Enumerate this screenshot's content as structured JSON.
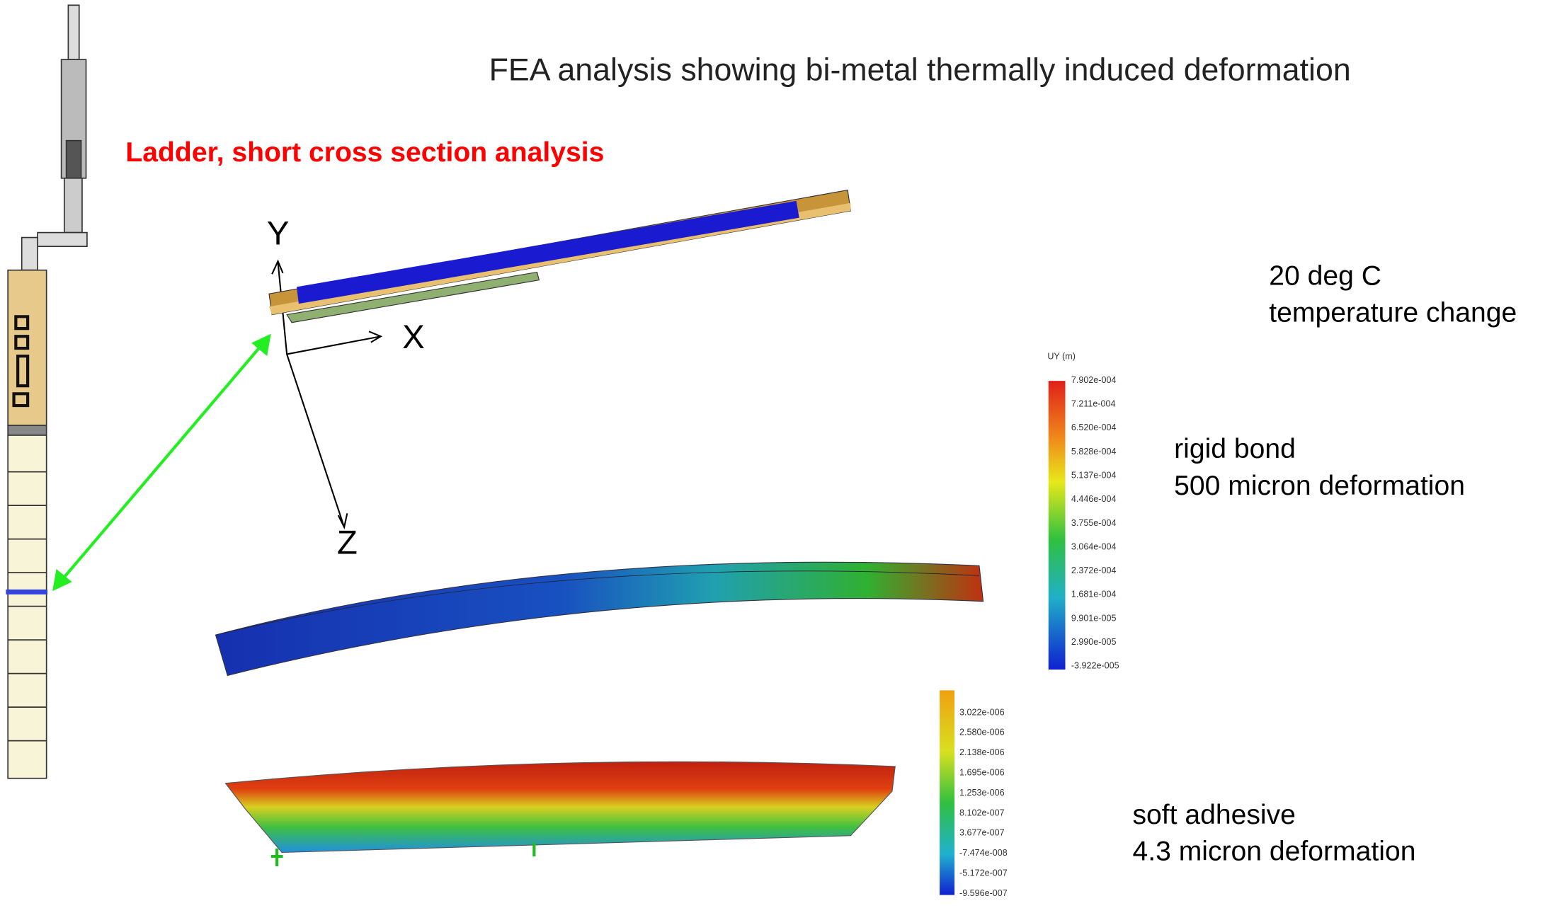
{
  "title": "FEA analysis showing bi-metal thermally induced deformation",
  "subtitle": "Ladder, short cross section analysis",
  "axes_labels": {
    "y": "Y",
    "x": "X",
    "z": "Z"
  },
  "annotations": [
    {
      "lines": [
        "20 deg C",
        "temperature change"
      ]
    },
    {
      "lines": [
        "rigid bond",
        "500 micron deformation"
      ]
    },
    {
      "lines": [
        "soft adhesive",
        "4.3 micron deformation"
      ]
    }
  ],
  "colorbars": [
    {
      "title": "UY (m)",
      "labels": [
        "7.902e-004",
        "7.211e-004",
        "6.520e-004",
        "5.828e-004",
        "5.137e-004",
        "4.446e-004",
        "3.755e-004",
        "3.064e-004",
        "2.372e-004",
        "1.681e-004",
        "9.901e-005",
        "2.990e-005",
        "-3.922e-005"
      ]
    },
    {
      "labels": [
        "3.022e-006",
        "2.580e-006",
        "2.138e-006",
        "1.695e-006",
        "1.253e-006",
        "8.102e-007",
        "3.677e-007",
        "-7.474e-008",
        "-5.172e-007",
        "-9.596e-007"
      ]
    }
  ]
}
